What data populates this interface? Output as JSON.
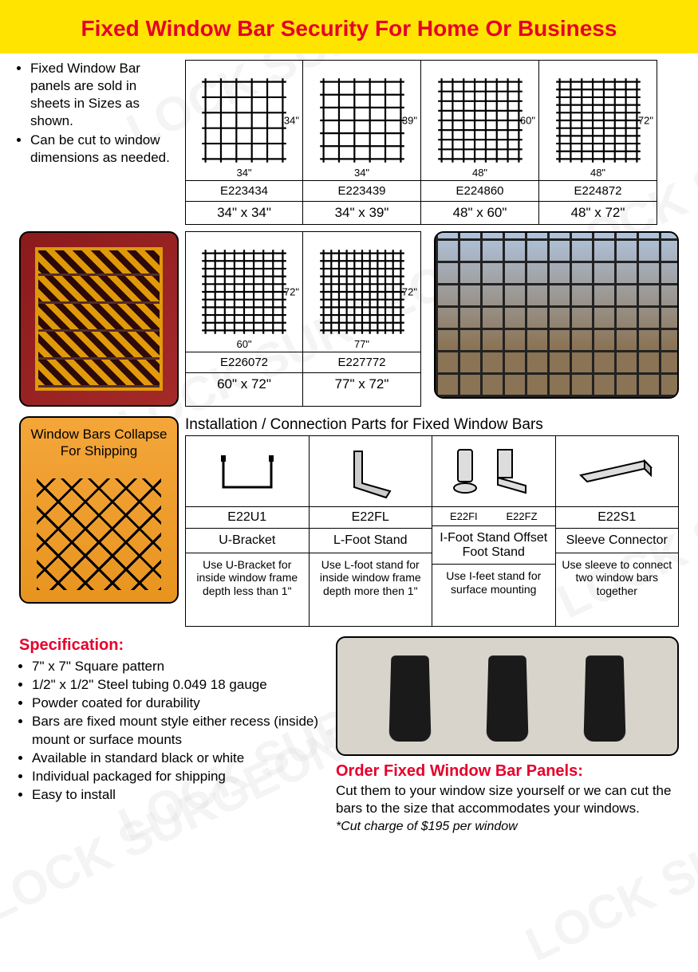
{
  "banner_title": "Fixed Window Bar Security For Home Or Business",
  "intro": [
    "Fixed Window Bar panels are sold in sheets in Sizes as shown.",
    "Can be cut to window dimensions as needed."
  ],
  "sizes_row1": [
    {
      "code": "E223434",
      "dims": "34\" x 34\"",
      "w": "34\"",
      "h": "34\"",
      "gw": 6,
      "gh": 6
    },
    {
      "code": "E223439",
      "dims": "34\" x 39\"",
      "w": "34\"",
      "h": "39\"",
      "gw": 6,
      "gh": 7
    },
    {
      "code": "E224860",
      "dims": "48\" x 60\"",
      "w": "48\"",
      "h": "60\"",
      "gw": 8,
      "gh": 9
    },
    {
      "code": "E224872",
      "dims": "48\" x 72\"",
      "w": "48\"",
      "h": "72\"",
      "gw": 8,
      "gh": 11
    }
  ],
  "sizes_row2": [
    {
      "code": "E226072",
      "dims": "60\" x 72\"",
      "w": "60\"",
      "h": "72\"",
      "gw": 9,
      "gh": 11
    },
    {
      "code": "E227772",
      "dims": "77\" x 72\"",
      "w": "77\"",
      "h": "72\"",
      "gw": 11,
      "gh": 11
    }
  ],
  "collapse_label": "Window Bars Collapse For Shipping",
  "install_title": "Installation / Connection Parts for Fixed Window Bars",
  "parts": [
    {
      "code": "E22U1",
      "name": "U-Bracket",
      "desc": "Use U-Bracket for inside window frame depth less than 1\""
    },
    {
      "code": "E22FL",
      "name": "L-Foot Stand",
      "desc": "Use L-foot stand for inside window frame depth more then 1\""
    },
    {
      "code": "E22FI     E22FZ",
      "code2a": "E22FI",
      "code2b": "E22FZ",
      "name": "I-Foot Stand Offset Foot Stand",
      "desc": "Use I-feet stand for surface mounting"
    },
    {
      "code": "E22S1",
      "name": "Sleeve Connector",
      "desc": "Use sleeve to connect two window bars together"
    }
  ],
  "spec_title": "Specification:",
  "specs": [
    "7\" x 7\" Square pattern",
    "1/2\" x 1/2\" Steel tubing 0.049  18 gauge",
    "Powder coated for durability",
    "Bars are fixed mount style either recess (inside) mount or surface mounts",
    "Available in standard black or white",
    "Individual packaged for shipping",
    "Easy to install"
  ],
  "order_title": "Order Fixed Window Bar Panels:",
  "order_text": "Cut them to your window size yourself or we can cut the bars to the size that accommodates your windows.",
  "cut_charge": "*Cut charge of $195 per window",
  "colors": {
    "banner_bg": "#ffe400",
    "accent": "#e4002b",
    "border": "#000000"
  }
}
